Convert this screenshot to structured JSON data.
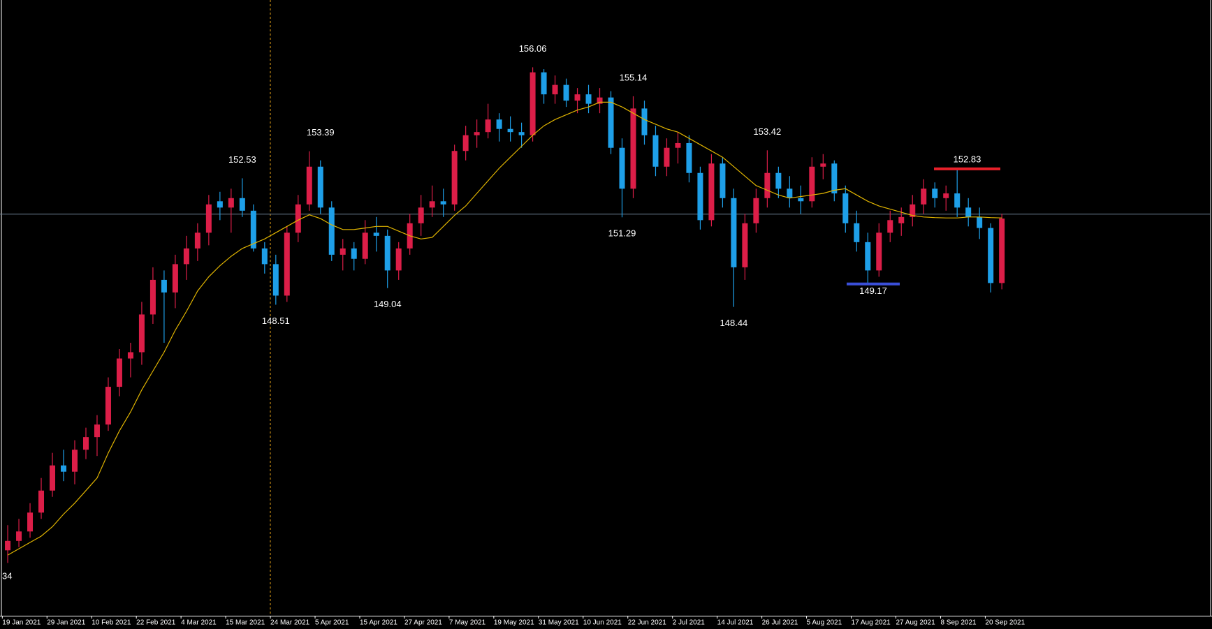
{
  "chart_data": {
    "type": "candlestick",
    "corner_label": "34",
    "up_color": "#dc1e48",
    "down_color": "#1e9fe8",
    "ylim": [
      138.62,
      158.2
    ],
    "hline": 151.39,
    "categories": [
      "19 Jan 2021",
      null,
      null,
      null,
      "29 Jan 2021",
      null,
      null,
      null,
      "10 Feb 2021",
      null,
      null,
      null,
      "22 Feb 2021",
      null,
      null,
      null,
      "4 Mar 2021",
      null,
      null,
      null,
      "15 Mar 2021",
      null,
      null,
      null,
      "24 Mar 2021",
      null,
      null,
      null,
      "5 Apr 2021",
      null,
      null,
      null,
      "15 Apr 2021",
      null,
      null,
      null,
      "27 Apr 2021",
      null,
      null,
      null,
      "7 May 2021",
      null,
      null,
      null,
      "19 May 2021",
      null,
      null,
      null,
      "31 May 2021",
      null,
      null,
      null,
      "10 Jun 2021",
      null,
      null,
      null,
      "22 Jun 2021",
      null,
      null,
      null,
      "2 Jul 2021",
      null,
      null,
      null,
      "14 Jul 2021",
      null,
      null,
      null,
      "26 Jul 2021",
      null,
      null,
      null,
      "5 Aug 2021",
      null,
      null,
      null,
      "17 Aug 2021",
      null,
      null,
      null,
      "27 Aug 2021",
      null,
      null,
      null,
      "8 Sep 2021",
      null,
      null,
      null,
      "20 Sep 2021",
      null
    ],
    "ohlc": [
      [
        140.7,
        141.5,
        140.3,
        141.0
      ],
      [
        141.0,
        141.7,
        140.8,
        141.3
      ],
      [
        141.3,
        142.2,
        141.1,
        141.9
      ],
      [
        141.9,
        143.0,
        141.7,
        142.6
      ],
      [
        142.6,
        143.8,
        142.4,
        143.4
      ],
      [
        143.4,
        143.9,
        142.9,
        143.2
      ],
      [
        143.2,
        144.2,
        142.8,
        143.9
      ],
      [
        143.9,
        144.6,
        143.6,
        144.3
      ],
      [
        144.3,
        145.0,
        143.7,
        144.7
      ],
      [
        144.7,
        146.2,
        144.5,
        145.9
      ],
      [
        145.9,
        147.1,
        145.6,
        146.8
      ],
      [
        146.8,
        147.3,
        146.2,
        147.0
      ],
      [
        147.0,
        148.6,
        146.6,
        148.2
      ],
      [
        148.2,
        149.7,
        147.9,
        149.3
      ],
      [
        149.3,
        149.6,
        147.3,
        148.9
      ],
      [
        148.9,
        150.1,
        148.4,
        149.8
      ],
      [
        149.8,
        150.7,
        149.3,
        150.3
      ],
      [
        150.3,
        151.1,
        149.9,
        150.8
      ],
      [
        150.8,
        152.0,
        150.4,
        151.7
      ],
      [
        151.8,
        152.1,
        151.2,
        151.6
      ],
      [
        151.6,
        152.2,
        150.8,
        151.9
      ],
      [
        151.9,
        152.53,
        151.3,
        151.5
      ],
      [
        151.5,
        151.7,
        150.2,
        150.3
      ],
      [
        150.3,
        150.5,
        149.5,
        149.8
      ],
      [
        149.8,
        150.1,
        148.51,
        148.8
      ],
      [
        148.8,
        151.0,
        148.6,
        150.8
      ],
      [
        150.8,
        152.0,
        150.5,
        151.7
      ],
      [
        151.7,
        153.39,
        151.5,
        152.9
      ],
      [
        152.9,
        153.1,
        151.4,
        151.6
      ],
      [
        151.6,
        151.8,
        149.9,
        150.1
      ],
      [
        150.1,
        150.6,
        149.6,
        150.3
      ],
      [
        150.3,
        150.5,
        149.6,
        149.97
      ],
      [
        149.97,
        151.2,
        149.8,
        150.8
      ],
      [
        150.8,
        151.3,
        150.2,
        150.7
      ],
      [
        150.7,
        150.9,
        149.04,
        149.6
      ],
      [
        149.6,
        150.5,
        149.3,
        150.3
      ],
      [
        150.3,
        151.4,
        150.1,
        151.1
      ],
      [
        151.1,
        152.0,
        150.7,
        151.6
      ],
      [
        151.6,
        152.3,
        151.3,
        151.8
      ],
      [
        151.8,
        152.2,
        151.3,
        151.7
      ],
      [
        151.7,
        153.6,
        151.5,
        153.4
      ],
      [
        153.4,
        154.2,
        153.1,
        153.9
      ],
      [
        153.9,
        154.4,
        153.5,
        154.0
      ],
      [
        154.0,
        154.9,
        153.8,
        154.4
      ],
      [
        154.4,
        154.6,
        153.7,
        154.1
      ],
      [
        154.1,
        154.5,
        153.7,
        154.0
      ],
      [
        154.0,
        154.3,
        153.5,
        153.9
      ],
      [
        153.9,
        156.06,
        153.7,
        155.9
      ],
      [
        155.9,
        156.0,
        154.9,
        155.2
      ],
      [
        155.2,
        155.8,
        154.9,
        155.5
      ],
      [
        155.5,
        155.7,
        154.8,
        155.0
      ],
      [
        155.0,
        155.4,
        154.6,
        155.2
      ],
      [
        155.2,
        155.5,
        154.6,
        154.9
      ],
      [
        154.9,
        155.4,
        154.6,
        155.1
      ],
      [
        155.1,
        155.3,
        153.3,
        153.5
      ],
      [
        153.5,
        153.8,
        151.29,
        152.2
      ],
      [
        152.2,
        155.14,
        151.9,
        154.75
      ],
      [
        154.75,
        155.0,
        153.6,
        153.9
      ],
      [
        153.9,
        154.2,
        152.6,
        152.9
      ],
      [
        152.9,
        153.8,
        152.6,
        153.5
      ],
      [
        153.5,
        154.0,
        153.0,
        153.65
      ],
      [
        153.65,
        153.9,
        152.4,
        152.7
      ],
      [
        152.7,
        152.9,
        150.9,
        151.2
      ],
      [
        151.2,
        153.3,
        151.0,
        153.0
      ],
      [
        153.0,
        153.2,
        151.6,
        151.9
      ],
      [
        151.9,
        152.2,
        148.44,
        149.7
      ],
      [
        149.7,
        151.4,
        149.3,
        151.1
      ],
      [
        151.1,
        152.2,
        150.8,
        151.9
      ],
      [
        151.9,
        153.42,
        151.6,
        152.7
      ],
      [
        152.7,
        152.9,
        151.9,
        152.2
      ],
      [
        152.2,
        152.6,
        151.6,
        151.9
      ],
      [
        151.9,
        152.3,
        151.4,
        151.8
      ],
      [
        151.8,
        153.2,
        151.6,
        152.9
      ],
      [
        152.9,
        153.3,
        152.5,
        153.0
      ],
      [
        153.0,
        153.1,
        151.8,
        152.05
      ],
      [
        152.05,
        152.3,
        150.8,
        151.1
      ],
      [
        151.1,
        151.5,
        150.2,
        150.5
      ],
      [
        150.5,
        150.8,
        149.17,
        149.6
      ],
      [
        149.6,
        151.1,
        149.4,
        150.8
      ],
      [
        150.8,
        151.5,
        150.5,
        151.2
      ],
      [
        151.1,
        151.6,
        150.7,
        151.3
      ],
      [
        151.3,
        152.0,
        151.0,
        151.7
      ],
      [
        151.7,
        152.5,
        151.4,
        152.2
      ],
      [
        152.2,
        152.4,
        151.6,
        151.9
      ],
      [
        151.9,
        152.3,
        151.5,
        152.05
      ],
      [
        152.05,
        152.83,
        151.3,
        151.6
      ],
      [
        151.6,
        151.9,
        151.0,
        151.3
      ],
      [
        151.3,
        151.6,
        150.6,
        150.95
      ],
      [
        150.95,
        151.1,
        148.9,
        149.2
      ],
      [
        149.2,
        151.4,
        149.0,
        151.25
      ]
    ],
    "moving_average": {
      "color": "#e0b400",
      "values": [
        140.55,
        140.75,
        140.95,
        141.15,
        141.45,
        141.85,
        142.2,
        142.6,
        143.0,
        143.8,
        144.5,
        145.1,
        145.8,
        146.4,
        147.0,
        147.7,
        148.3,
        148.95,
        149.4,
        149.75,
        150.05,
        150.3,
        150.45,
        150.6,
        150.8,
        151.0,
        151.2,
        151.37,
        151.25,
        151.05,
        150.9,
        150.9,
        150.95,
        151.0,
        151.0,
        150.85,
        150.7,
        150.6,
        150.65,
        151.0,
        151.35,
        151.65,
        152.05,
        152.45,
        152.85,
        153.2,
        153.55,
        153.9,
        154.2,
        154.4,
        154.55,
        154.7,
        154.8,
        154.95,
        154.95,
        154.8,
        154.6,
        154.4,
        154.25,
        154.1,
        154.0,
        153.8,
        153.6,
        153.4,
        153.2,
        152.9,
        152.6,
        152.3,
        152.15,
        152.0,
        151.9,
        151.95,
        152.0,
        152.05,
        152.15,
        152.2,
        152.0,
        151.8,
        151.65,
        151.55,
        151.45,
        151.35,
        151.3,
        151.28,
        151.27,
        151.27,
        151.3,
        151.3,
        151.28,
        151.27
      ]
    },
    "annotations": [
      152.53,
      148.51,
      153.39,
      149.04,
      156.06,
      155.14,
      151.29,
      153.42,
      148.44
    ],
    "levels": [
      {
        "value": 152.83,
        "color": "#e8202a"
      },
      {
        "value": 149.17,
        "color": "#3a4fd8"
      }
    ]
  }
}
